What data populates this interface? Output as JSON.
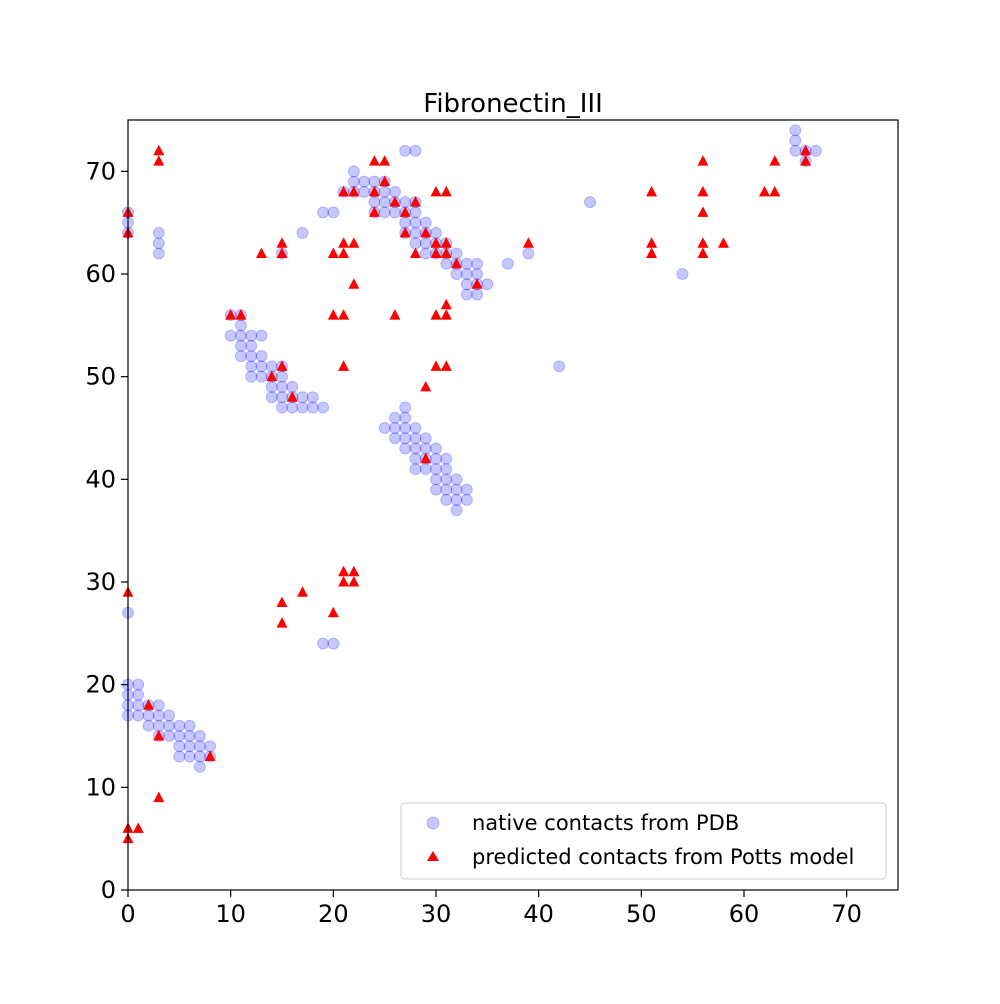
{
  "chart_data": {
    "type": "scatter",
    "title": "Fibronectin_III",
    "xlabel": "",
    "ylabel": "",
    "xlim": [
      0,
      75
    ],
    "ylim": [
      0,
      75
    ],
    "x_ticks": [
      0,
      10,
      20,
      30,
      40,
      50,
      60,
      70
    ],
    "y_ticks": [
      0,
      10,
      20,
      30,
      40,
      50,
      60,
      70
    ],
    "grid": false,
    "legend_position": "lower-right",
    "series": [
      {
        "name": "native contacts from PDB",
        "marker": "circle",
        "color": "#0000ff",
        "alpha": 0.22,
        "points": [
          [
            0,
            17
          ],
          [
            0,
            18
          ],
          [
            0,
            19
          ],
          [
            0,
            20
          ],
          [
            1,
            17
          ],
          [
            1,
            18
          ],
          [
            1,
            19
          ],
          [
            1,
            20
          ],
          [
            2,
            16
          ],
          [
            2,
            17
          ],
          [
            2,
            18
          ],
          [
            3,
            15
          ],
          [
            3,
            16
          ],
          [
            3,
            17
          ],
          [
            3,
            18
          ],
          [
            4,
            15
          ],
          [
            4,
            16
          ],
          [
            4,
            17
          ],
          [
            5,
            13
          ],
          [
            5,
            14
          ],
          [
            5,
            15
          ],
          [
            5,
            16
          ],
          [
            6,
            13
          ],
          [
            6,
            14
          ],
          [
            6,
            15
          ],
          [
            6,
            16
          ],
          [
            7,
            12
          ],
          [
            7,
            13
          ],
          [
            7,
            14
          ],
          [
            7,
            15
          ],
          [
            8,
            13
          ],
          [
            8,
            14
          ],
          [
            0,
            27
          ],
          [
            0,
            64
          ],
          [
            0,
            65
          ],
          [
            0,
            66
          ],
          [
            3,
            62
          ],
          [
            3,
            63
          ],
          [
            3,
            64
          ],
          [
            10,
            54
          ],
          [
            10,
            56
          ],
          [
            11,
            52
          ],
          [
            11,
            53
          ],
          [
            11,
            54
          ],
          [
            11,
            55
          ],
          [
            11,
            56
          ],
          [
            12,
            50
          ],
          [
            12,
            51
          ],
          [
            12,
            52
          ],
          [
            12,
            53
          ],
          [
            12,
            54
          ],
          [
            13,
            50
          ],
          [
            13,
            51
          ],
          [
            13,
            52
          ],
          [
            13,
            54
          ],
          [
            14,
            48
          ],
          [
            14,
            49
          ],
          [
            14,
            50
          ],
          [
            14,
            51
          ],
          [
            15,
            47
          ],
          [
            15,
            48
          ],
          [
            15,
            49
          ],
          [
            15,
            50
          ],
          [
            15,
            51
          ],
          [
            16,
            47
          ],
          [
            16,
            48
          ],
          [
            16,
            49
          ],
          [
            17,
            47
          ],
          [
            17,
            48
          ],
          [
            18,
            47
          ],
          [
            18,
            48
          ],
          [
            19,
            47
          ],
          [
            15,
            62
          ],
          [
            17,
            64
          ],
          [
            19,
            66
          ],
          [
            20,
            66
          ],
          [
            19,
            24
          ],
          [
            20,
            24
          ],
          [
            21,
            68
          ],
          [
            22,
            68
          ],
          [
            22,
            69
          ],
          [
            22,
            70
          ],
          [
            23,
            68
          ],
          [
            23,
            69
          ],
          [
            24,
            66
          ],
          [
            24,
            67
          ],
          [
            24,
            68
          ],
          [
            24,
            69
          ],
          [
            25,
            66
          ],
          [
            25,
            67
          ],
          [
            25,
            68
          ],
          [
            25,
            69
          ],
          [
            26,
            66
          ],
          [
            26,
            67
          ],
          [
            26,
            68
          ],
          [
            27,
            64
          ],
          [
            27,
            65
          ],
          [
            27,
            66
          ],
          [
            27,
            67
          ],
          [
            27,
            72
          ],
          [
            28,
            63
          ],
          [
            28,
            64
          ],
          [
            28,
            65
          ],
          [
            28,
            66
          ],
          [
            28,
            67
          ],
          [
            28,
            72
          ],
          [
            29,
            62
          ],
          [
            29,
            63
          ],
          [
            29,
            64
          ],
          [
            29,
            65
          ],
          [
            30,
            62
          ],
          [
            30,
            63
          ],
          [
            30,
            64
          ],
          [
            31,
            61
          ],
          [
            31,
            62
          ],
          [
            31,
            63
          ],
          [
            32,
            60
          ],
          [
            32,
            61
          ],
          [
            32,
            62
          ],
          [
            33,
            58
          ],
          [
            33,
            59
          ],
          [
            33,
            60
          ],
          [
            33,
            61
          ],
          [
            34,
            58
          ],
          [
            34,
            59
          ],
          [
            34,
            60
          ],
          [
            34,
            61
          ],
          [
            35,
            59
          ],
          [
            37,
            61
          ],
          [
            39,
            62
          ],
          [
            45,
            67
          ],
          [
            54,
            60
          ],
          [
            42,
            51
          ],
          [
            25,
            45
          ],
          [
            26,
            44
          ],
          [
            26,
            45
          ],
          [
            26,
            46
          ],
          [
            27,
            43
          ],
          [
            27,
            44
          ],
          [
            27,
            45
          ],
          [
            27,
            46
          ],
          [
            27,
            47
          ],
          [
            28,
            41
          ],
          [
            28,
            42
          ],
          [
            28,
            43
          ],
          [
            28,
            44
          ],
          [
            28,
            45
          ],
          [
            29,
            41
          ],
          [
            29,
            42
          ],
          [
            29,
            43
          ],
          [
            29,
            44
          ],
          [
            30,
            39
          ],
          [
            30,
            40
          ],
          [
            30,
            41
          ],
          [
            30,
            42
          ],
          [
            30,
            43
          ],
          [
            31,
            38
          ],
          [
            31,
            39
          ],
          [
            31,
            40
          ],
          [
            31,
            41
          ],
          [
            31,
            42
          ],
          [
            32,
            37
          ],
          [
            32,
            38
          ],
          [
            32,
            39
          ],
          [
            32,
            40
          ],
          [
            33,
            38
          ],
          [
            33,
            39
          ],
          [
            65,
            72
          ],
          [
            65,
            73
          ],
          [
            65,
            74
          ],
          [
            66,
            71
          ],
          [
            66,
            72
          ],
          [
            67,
            72
          ]
        ]
      },
      {
        "name": "predicted contacts from Potts model",
        "marker": "triangle",
        "color": "#ff0000",
        "alpha": 1,
        "points": [
          [
            0,
            5
          ],
          [
            0,
            6
          ],
          [
            1,
            6
          ],
          [
            3,
            9
          ],
          [
            3,
            15
          ],
          [
            2,
            18
          ],
          [
            8,
            13
          ],
          [
            0,
            29
          ],
          [
            0,
            64
          ],
          [
            0,
            66
          ],
          [
            3,
            71
          ],
          [
            3,
            72
          ],
          [
            10,
            56
          ],
          [
            11,
            56
          ],
          [
            13,
            62
          ],
          [
            14,
            50
          ],
          [
            15,
            51
          ],
          [
            15,
            62
          ],
          [
            15,
            63
          ],
          [
            16,
            48
          ],
          [
            15,
            26
          ],
          [
            15,
            28
          ],
          [
            17,
            29
          ],
          [
            20,
            27
          ],
          [
            21,
            30
          ],
          [
            21,
            31
          ],
          [
            22,
            30
          ],
          [
            22,
            31
          ],
          [
            20,
            56
          ],
          [
            21,
            56
          ],
          [
            21,
            51
          ],
          [
            20,
            62
          ],
          [
            21,
            62
          ],
          [
            21,
            63
          ],
          [
            22,
            63
          ],
          [
            22,
            59
          ],
          [
            21,
            68
          ],
          [
            22,
            68
          ],
          [
            24,
            66
          ],
          [
            24,
            68
          ],
          [
            24,
            71
          ],
          [
            25,
            71
          ],
          [
            25,
            69
          ],
          [
            26,
            56
          ],
          [
            26,
            67
          ],
          [
            27,
            64
          ],
          [
            27,
            66
          ],
          [
            28,
            62
          ],
          [
            28,
            67
          ],
          [
            29,
            64
          ],
          [
            29,
            49
          ],
          [
            29,
            42
          ],
          [
            30,
            51
          ],
          [
            30,
            56
          ],
          [
            30,
            62
          ],
          [
            30,
            63
          ],
          [
            30,
            68
          ],
          [
            31,
            51
          ],
          [
            31,
            56
          ],
          [
            31,
            57
          ],
          [
            31,
            62
          ],
          [
            31,
            63
          ],
          [
            31,
            68
          ],
          [
            32,
            61
          ],
          [
            34,
            59
          ],
          [
            39,
            63
          ],
          [
            51,
            62
          ],
          [
            51,
            63
          ],
          [
            51,
            68
          ],
          [
            56,
            62
          ],
          [
            56,
            63
          ],
          [
            56,
            66
          ],
          [
            56,
            68
          ],
          [
            56,
            71
          ],
          [
            58,
            63
          ],
          [
            62,
            68
          ],
          [
            63,
            68
          ],
          [
            63,
            71
          ],
          [
            66,
            71
          ],
          [
            66,
            72
          ]
        ]
      }
    ]
  }
}
